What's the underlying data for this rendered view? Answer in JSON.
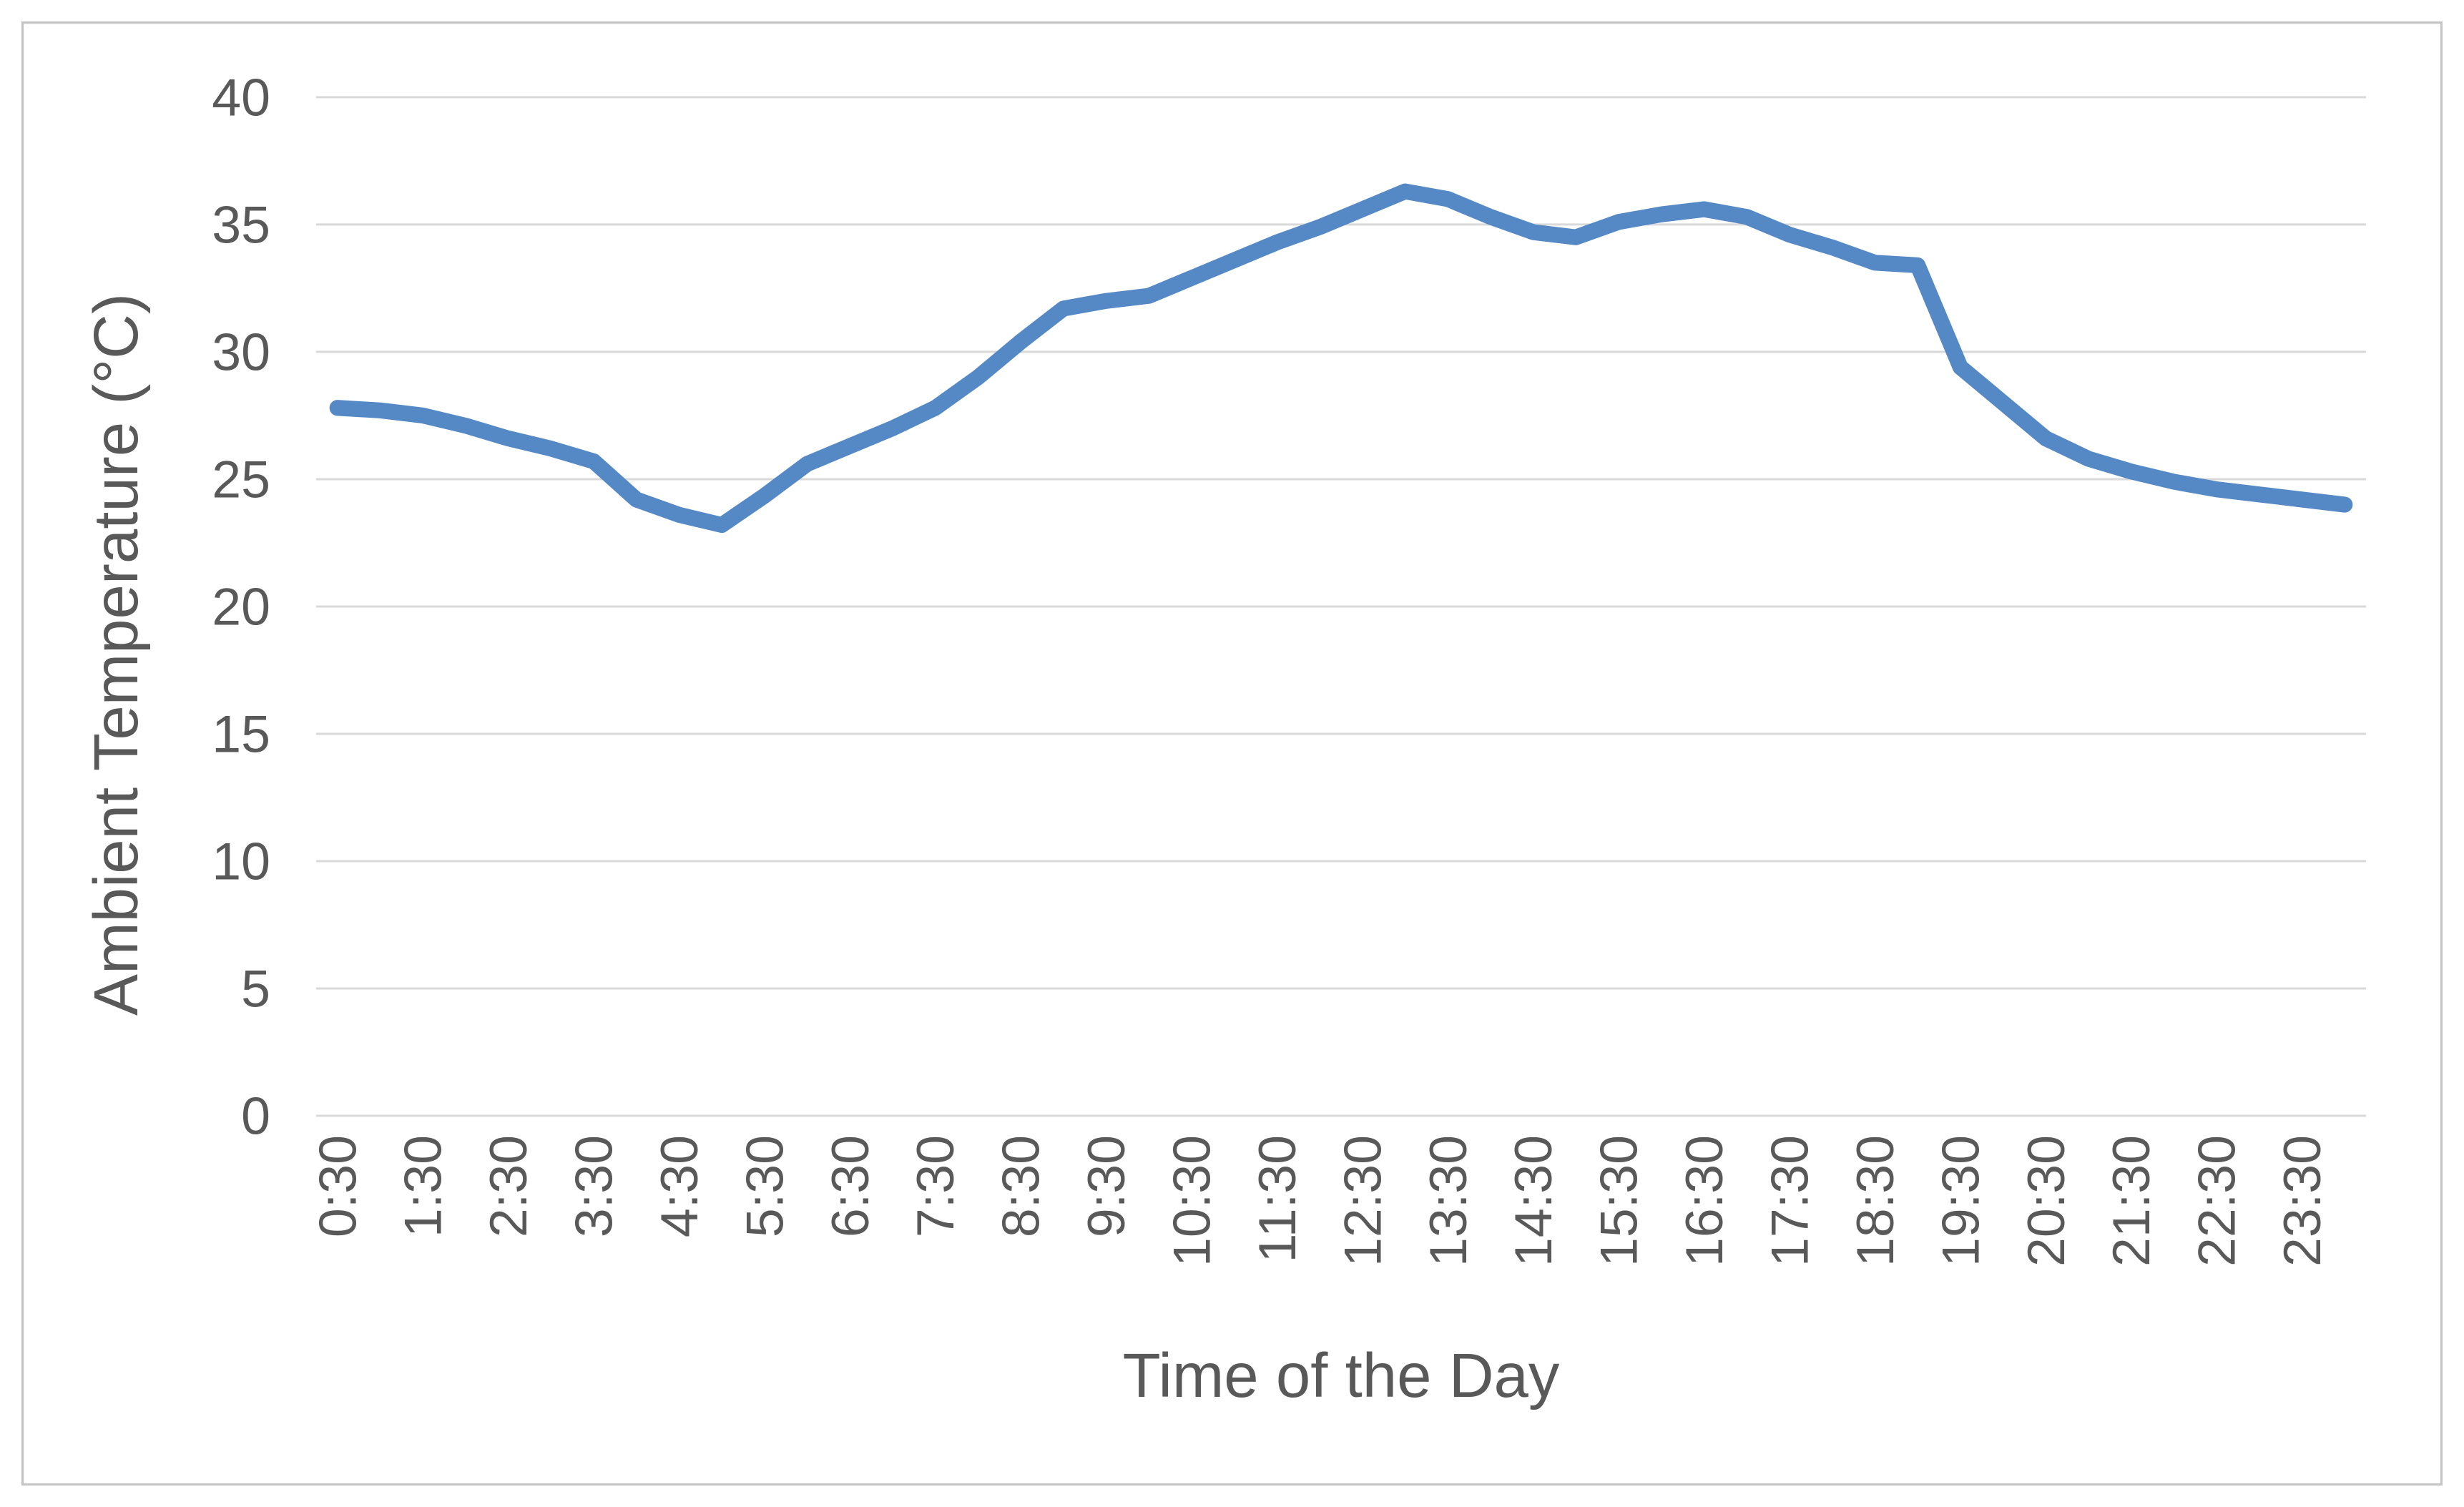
{
  "chart_data": {
    "type": "line",
    "title": "",
    "xlabel": "Time of the Day",
    "ylabel": "Ambient Temperature (°C)",
    "x": [
      "0:30",
      "1:00",
      "1:30",
      "2:00",
      "2:30",
      "3:00",
      "3:30",
      "4:00",
      "4:30",
      "5:00",
      "5:30",
      "6:00",
      "6:30",
      "7:00",
      "7:30",
      "8:00",
      "8:30",
      "9:00",
      "9:30",
      "10:00",
      "10:30",
      "11:00",
      "11:30",
      "12:00",
      "12:30",
      "13:00",
      "13:30",
      "14:00",
      "14:30",
      "15:00",
      "15:30",
      "16:00",
      "16:30",
      "17:00",
      "17:30",
      "18:00",
      "18:30",
      "19:00",
      "19:30",
      "20:00",
      "20:30",
      "21:00",
      "21:30",
      "22:00",
      "22:30",
      "23:00",
      "23:30",
      "24:00"
    ],
    "series": [
      {
        "name": "Ambient Temperature",
        "values": [
          27.8,
          27.7,
          27.5,
          27.1,
          26.6,
          26.2,
          25.7,
          24.2,
          23.6,
          23.2,
          24.35,
          25.6,
          26.3,
          27.0,
          27.8,
          29.0,
          30.4,
          31.7,
          32.0,
          32.2,
          32.9,
          33.6,
          34.3,
          34.9,
          35.6,
          36.3,
          36.0,
          35.3,
          34.7,
          34.5,
          35.1,
          35.4,
          35.6,
          35.3,
          34.6,
          34.1,
          33.5,
          33.4,
          29.4,
          28.0,
          26.6,
          25.8,
          25.3,
          24.9,
          24.6,
          24.4,
          24.2,
          24.0
        ]
      }
    ],
    "x_tick_labels": [
      "0:30",
      "1:30",
      "2:30",
      "3:30",
      "4:30",
      "5:30",
      "6:30",
      "7:30",
      "8:30",
      "9:30",
      "10:30",
      "11:30",
      "12:30",
      "13:30",
      "14:30",
      "15:30",
      "16:30",
      "17:30",
      "18:30",
      "19:30",
      "20:30",
      "21:30",
      "22:30",
      "23:30"
    ],
    "yticks": [
      0,
      5,
      10,
      15,
      20,
      25,
      30,
      35,
      40
    ],
    "ylim": [
      0,
      40
    ],
    "grid": "horizontal-major",
    "legend": "none",
    "x_tick_rotation": -90,
    "colors": {
      "line": "#5589c6",
      "gridline": "#d9d9d9",
      "labels": "#595959",
      "chart_border": "#c3c3c3",
      "background": "#ffffff"
    }
  }
}
